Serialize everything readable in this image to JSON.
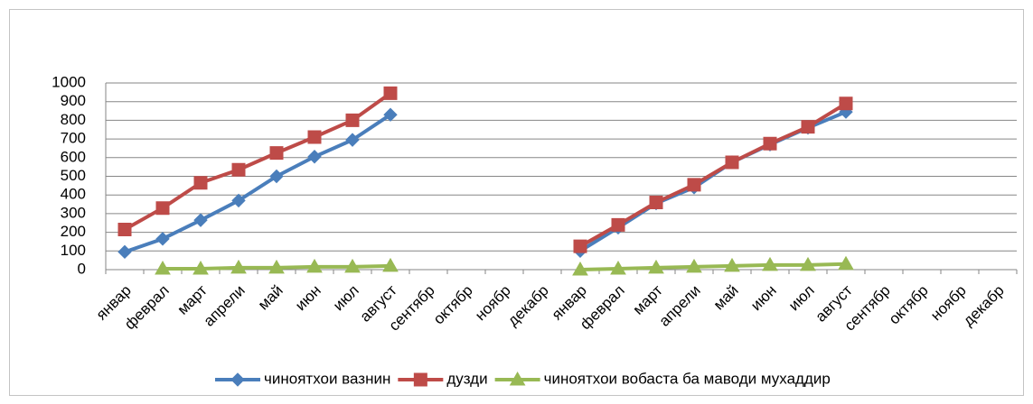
{
  "chart_data": {
    "type": "line",
    "categories": [
      "январ",
      "феврал",
      "март",
      "апрели",
      "май",
      "июн",
      "июл",
      "август",
      "сентябр",
      "октябр",
      "ноябр",
      "декабр",
      "январ",
      "феврал",
      "март",
      "апрели",
      "май",
      "июн",
      "июл",
      "август",
      "сентябр",
      "октябр",
      "ноябр",
      "декабр"
    ],
    "series": [
      {
        "name": "чиноятхои вазнин",
        "color": "#4a7ebb",
        "marker": "diamond",
        "values": [
          95,
          165,
          265,
          370,
          500,
          605,
          695,
          830,
          null,
          null,
          null,
          null,
          100,
          225,
          355,
          440,
          575,
          670,
          760,
          845,
          null,
          null,
          null,
          null
        ]
      },
      {
        "name": "дузди",
        "color": "#be4b48",
        "marker": "square",
        "values": [
          215,
          330,
          465,
          535,
          625,
          710,
          800,
          945,
          null,
          null,
          null,
          null,
          125,
          240,
          360,
          455,
          575,
          675,
          765,
          890,
          null,
          null,
          null,
          null
        ]
      },
      {
        "name": "чиноятхои вобаста ба маводи мухаддир",
        "color": "#98b954",
        "marker": "triangle",
        "values": [
          null,
          5,
          5,
          10,
          10,
          15,
          15,
          20,
          null,
          null,
          null,
          null,
          0,
          5,
          10,
          15,
          20,
          25,
          25,
          30,
          null,
          null,
          null,
          null
        ]
      }
    ],
    "ylim": [
      0,
      1000
    ],
    "yticks": [
      0,
      100,
      200,
      300,
      400,
      500,
      600,
      700,
      800,
      900,
      1000
    ],
    "grid": true,
    "legend": "bottom"
  }
}
